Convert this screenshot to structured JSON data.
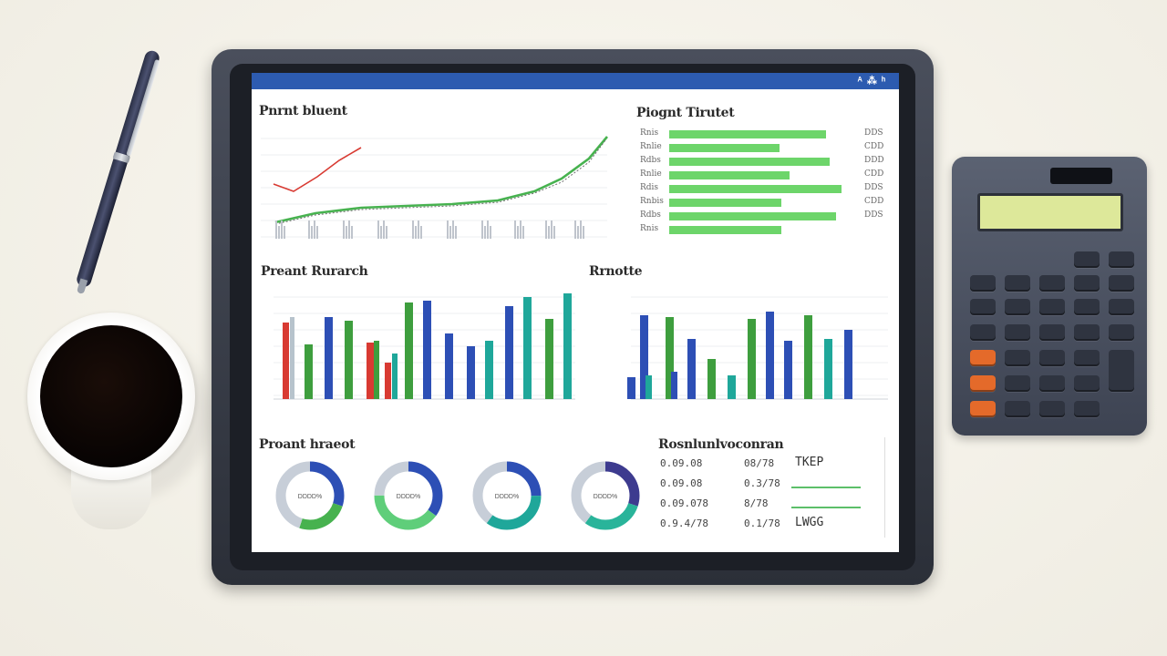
{
  "screen": {
    "status": "ᴬ ⁂ ʰ"
  },
  "panels": {
    "line_title": "Pnrnt bluent",
    "bar_title": "Piognt Tirutet",
    "grouped_title": "Preant Rurarch",
    "grouped2_title": "Rrnotte",
    "donut_title": "Proant hraeot",
    "table_title": "Rosnlunlvoconran"
  },
  "bar_rows": [
    {
      "label": "Rnis",
      "value": 0.78,
      "right": "DDS"
    },
    {
      "label": "Rnlie",
      "value": 0.55,
      "right": "CDD"
    },
    {
      "label": "Rdbs",
      "value": 0.8,
      "right": "DDD"
    },
    {
      "label": "Rnlie",
      "value": 0.6,
      "right": "CDD"
    },
    {
      "label": "Rdis",
      "value": 0.86,
      "right": "DDS"
    },
    {
      "label": "Rnbis",
      "value": 0.56,
      "right": "CDD"
    },
    {
      "label": "Rdbs",
      "value": 0.83,
      "right": "DDS"
    },
    {
      "label": "Rnis",
      "value": 0.56,
      "right": ""
    }
  ],
  "table_rows": [
    {
      "a": "0.09.08",
      "b": "08/78",
      "c": "TKEP"
    },
    {
      "a": "0.09.08",
      "b": "0.3/78",
      "c": ""
    },
    {
      "a": "0.09.078",
      "b": "8/78",
      "c": ""
    },
    {
      "a": "0.9.4/78",
      "b": "0.1/78",
      "c": "LWGG"
    }
  ],
  "donuts": [
    {
      "label": "DDDD%",
      "segments": [
        0.3,
        0.25,
        0.45
      ],
      "colors": [
        "#2d4fb5",
        "#47b24f",
        "#c7ced8"
      ]
    },
    {
      "label": "DDDD%",
      "segments": [
        0.35,
        0.4,
        0.25
      ],
      "colors": [
        "#2d4fb5",
        "#5fce7a",
        "#c7ced8"
      ]
    },
    {
      "label": "DDDD%",
      "segments": [
        0.25,
        0.35,
        0.4
      ],
      "colors": [
        "#2d4fb5",
        "#1fa79a",
        "#c7ced8"
      ]
    },
    {
      "label": "DDDD%",
      "segments": [
        0.3,
        0.3,
        0.4
      ],
      "colors": [
        "#3d3b8f",
        "#29b49a",
        "#c7ced8"
      ]
    }
  ],
  "colors": {
    "blue": "#2d4fb5",
    "green": "#3e9e3e",
    "teal": "#1fa79a",
    "red": "#d83a32",
    "bar_green": "#6dd56a"
  }
}
